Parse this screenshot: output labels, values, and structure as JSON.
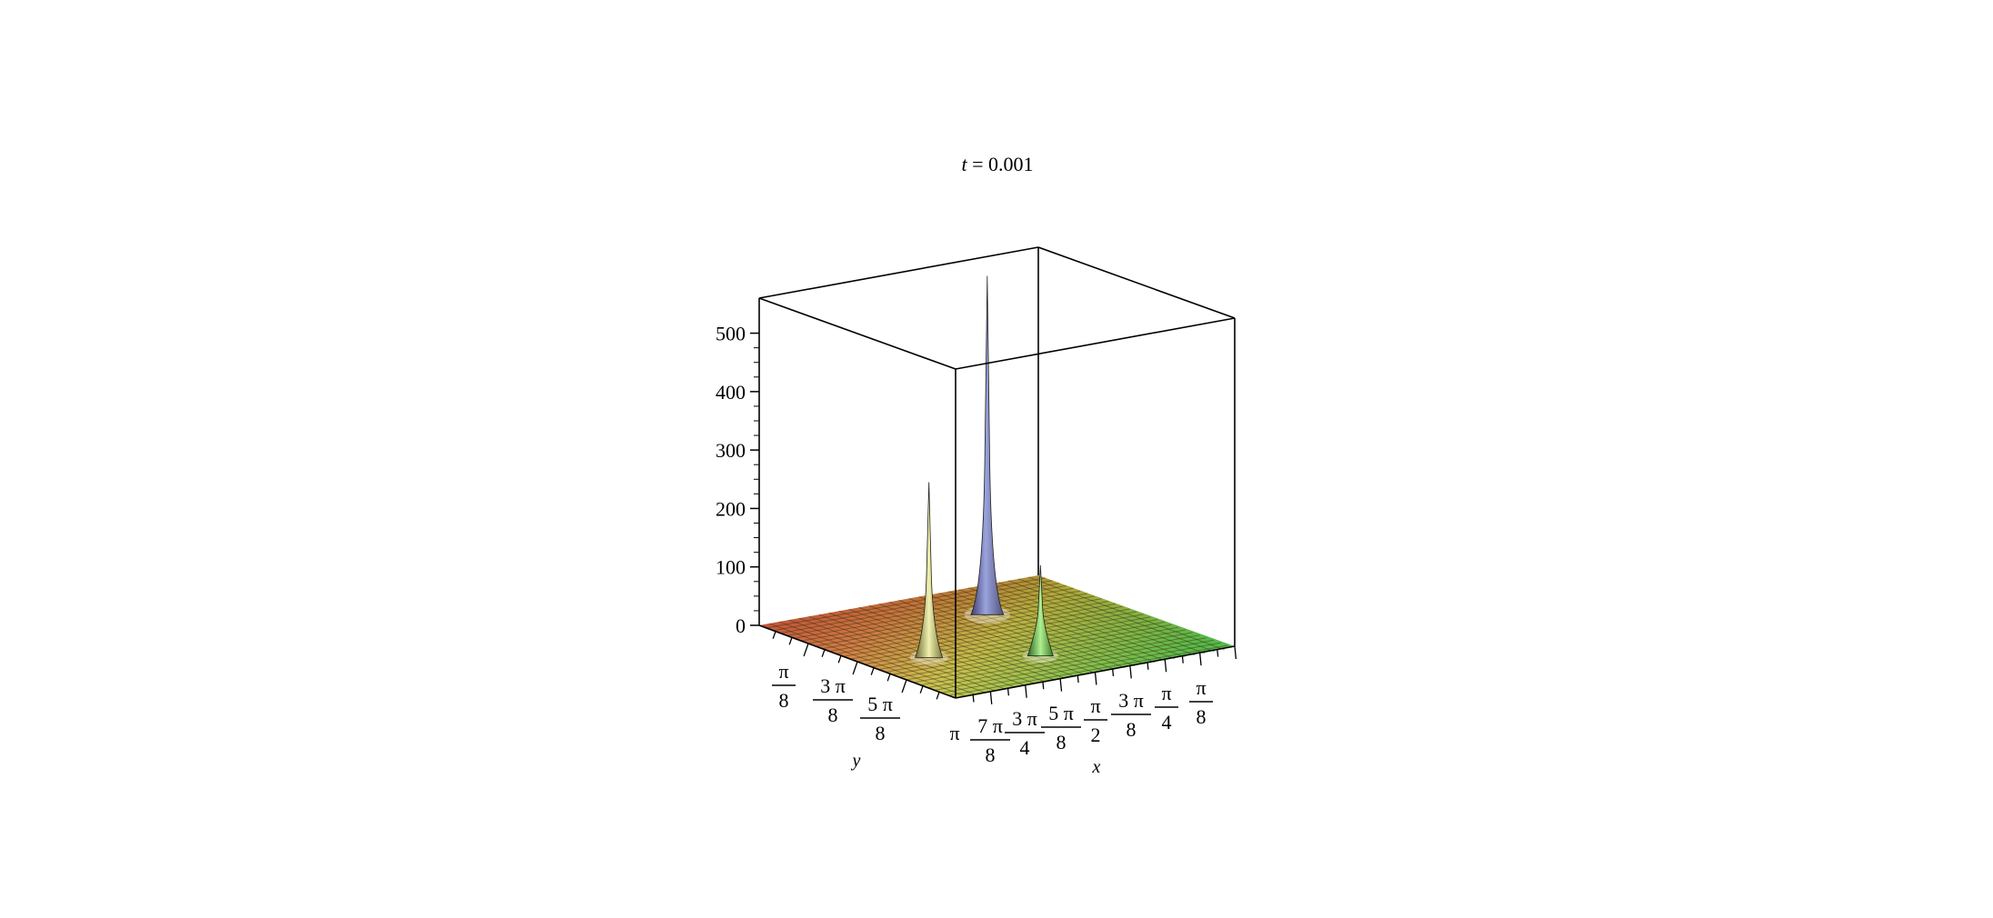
{
  "chart_data": {
    "type": "surface3d",
    "title": {
      "var": "t",
      "eq": " = 0.001"
    },
    "xlabel": "x",
    "ylabel": "y",
    "zlabel": "",
    "zlim": [
      0,
      560
    ],
    "z_ticks": [
      "0",
      "100",
      "200",
      "300",
      "400",
      "500"
    ],
    "z_tick_values": [
      0,
      100,
      200,
      300,
      400,
      500
    ],
    "y_ticks": [
      {
        "num": "π",
        "den": "8"
      },
      {
        "num": "3 π",
        "den": "8"
      },
      {
        "num": "5 π",
        "den": "8"
      }
    ],
    "x_ticks": [
      {
        "num": "π",
        "den": ""
      },
      {
        "num": "7 π",
        "den": "8"
      },
      {
        "num": "3 π",
        "den": "4"
      },
      {
        "num": "5 π",
        "den": "8"
      },
      {
        "num": "π",
        "den": "2"
      },
      {
        "num": "3 π",
        "den": "8"
      },
      {
        "num": "π",
        "den": "4"
      },
      {
        "num": "π",
        "den": "8"
      }
    ],
    "peaks": [
      {
        "name": "peak-tallest",
        "height": 580,
        "color": "#8890c8"
      },
      {
        "name": "peak-middle",
        "height": 300,
        "color": "#d8d880"
      },
      {
        "name": "peak-small",
        "height": 155,
        "color": "#60c040"
      }
    ],
    "surface_colors": {
      "red": "#d04030",
      "yellow": "#d8c840",
      "green": "#50c040"
    },
    "grid": true,
    "box": true
  }
}
